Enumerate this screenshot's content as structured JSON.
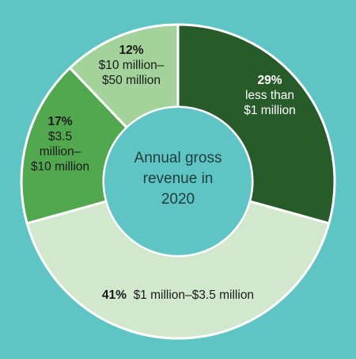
{
  "chart_data": {
    "type": "pie",
    "donut": true,
    "start_angle_deg": 0,
    "direction": "clockwise",
    "center_label": [
      "Annual gross",
      "revenue in",
      "2020"
    ],
    "slices": [
      {
        "percent": "29%",
        "value": 29,
        "label_lines": [
          "less than",
          "$1 million"
        ],
        "color": "#285b2a",
        "text_color": "#ffffff",
        "inline": false
      },
      {
        "percent": "41%",
        "value": 41,
        "label_lines": [
          "$1 million–$3.5 million"
        ],
        "color": "#d2e8cd",
        "text_color": "#1a1a1a",
        "inline": true
      },
      {
        "percent": "17%",
        "value": 17,
        "label_lines": [
          "$3.5",
          "million–",
          "$10 million"
        ],
        "color": "#52a84e",
        "text_color": "#1a1a1a",
        "inline": false
      },
      {
        "percent": "12%",
        "value": 12,
        "label_lines": [
          "$10 million–",
          "$50 million"
        ],
        "color": "#a3d39b",
        "text_color": "#1a1a1a",
        "inline": false
      }
    ]
  },
  "colors": {
    "background": "#5ec5c4",
    "center_fill": "#5ec5c4",
    "center_text": "#1f3d3d"
  }
}
